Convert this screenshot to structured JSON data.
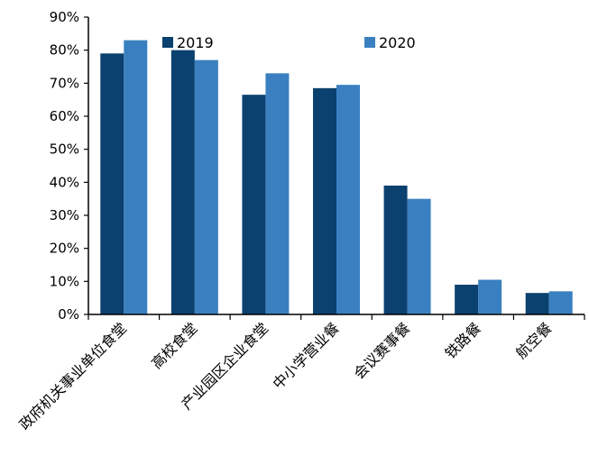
{
  "chart_data": {
    "type": "bar",
    "title": "",
    "xlabel": "",
    "ylabel": "",
    "ylim": [
      0,
      90
    ],
    "y_tick_values": [
      0,
      10,
      20,
      30,
      40,
      50,
      60,
      70,
      80,
      90
    ],
    "y_tick_labels": [
      "0%",
      "10%",
      "20%",
      "30%",
      "40%",
      "50%",
      "60%",
      "70%",
      "80%",
      "90%"
    ],
    "categories": [
      "政府机关事业单位食堂",
      "高校食堂",
      "产业园区企业食堂",
      "中小学营业餐",
      "会议赛事餐",
      "铁路餐",
      "航空餐"
    ],
    "series": [
      {
        "name": "2019",
        "color": "#0b416e",
        "values": [
          79,
          80,
          66.5,
          68.5,
          39,
          9,
          6.5
        ]
      },
      {
        "name": "2020",
        "color": "#3a80c0",
        "values": [
          83,
          77,
          73,
          69.5,
          35,
          10.5,
          7
        ]
      }
    ],
    "grid": false,
    "legend_position": "top"
  }
}
